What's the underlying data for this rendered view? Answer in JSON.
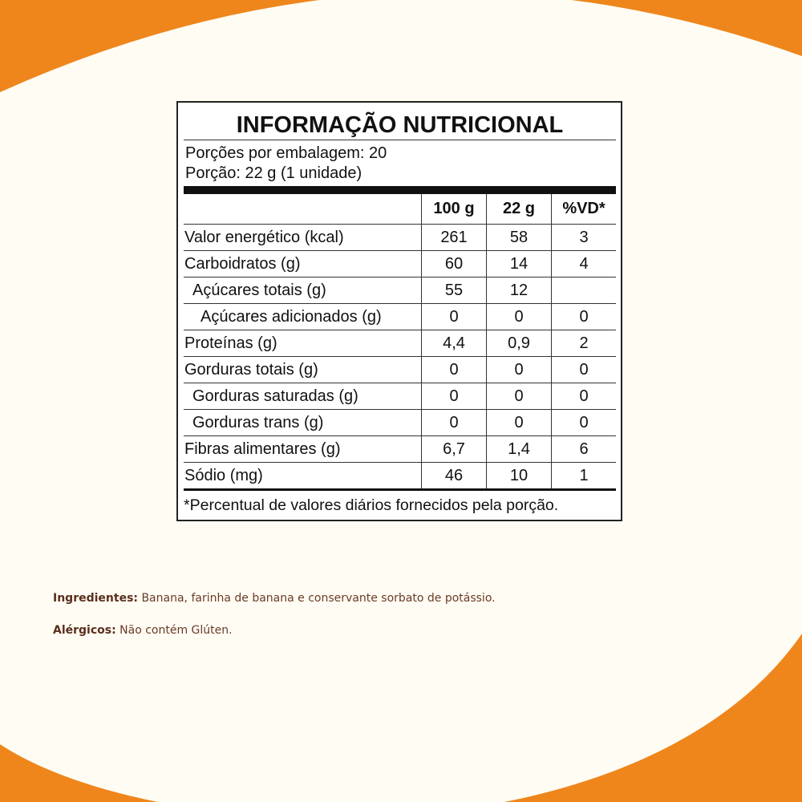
{
  "colors": {
    "accent": "#ee861c",
    "background": "#fffcf4",
    "text_brown": "#6b3a24"
  },
  "label": {
    "title": "INFORMAÇÃO NUTRICIONAL",
    "servings_per_package": "Porções por embalagem: 20",
    "serving_size": "Porção: 22 g (1 unidade)",
    "columns": [
      "100 g",
      "22 g",
      "%VD*"
    ],
    "rows": [
      {
        "name": "Valor energético (kcal)",
        "indent": 0,
        "v100": "261",
        "vserv": "58",
        "vd": "3"
      },
      {
        "name": "Carboidratos (g)",
        "indent": 0,
        "v100": "60",
        "vserv": "14",
        "vd": "4"
      },
      {
        "name": "Açúcares totais (g)",
        "indent": 1,
        "v100": "55",
        "vserv": "12",
        "vd": ""
      },
      {
        "name": "Açúcares adicionados (g)",
        "indent": 2,
        "v100": "0",
        "vserv": "0",
        "vd": "0"
      },
      {
        "name": "Proteínas (g)",
        "indent": 0,
        "v100": "4,4",
        "vserv": "0,9",
        "vd": "2"
      },
      {
        "name": "Gorduras totais (g)",
        "indent": 0,
        "v100": "0",
        "vserv": "0",
        "vd": "0"
      },
      {
        "name": "Gorduras saturadas (g)",
        "indent": 1,
        "v100": "0",
        "vserv": "0",
        "vd": "0"
      },
      {
        "name": "Gorduras trans (g)",
        "indent": 1,
        "v100": "0",
        "vserv": "0",
        "vd": "0"
      },
      {
        "name": "Fibras alimentares (g)",
        "indent": 0,
        "v100": "6,7",
        "vserv": "1,4",
        "vd": "6"
      },
      {
        "name": "Sódio (mg)",
        "indent": 0,
        "v100": "46",
        "vserv": "10",
        "vd": "1"
      }
    ],
    "footnote": "*Percentual de valores diários fornecidos pela porção."
  },
  "ingredients": {
    "label": "Ingredientes:",
    "text": " Banana, farinha de banana e conservante sorbato de potássio."
  },
  "allergens": {
    "label": "Alérgicos:",
    "text": " Não contém Glúten."
  }
}
